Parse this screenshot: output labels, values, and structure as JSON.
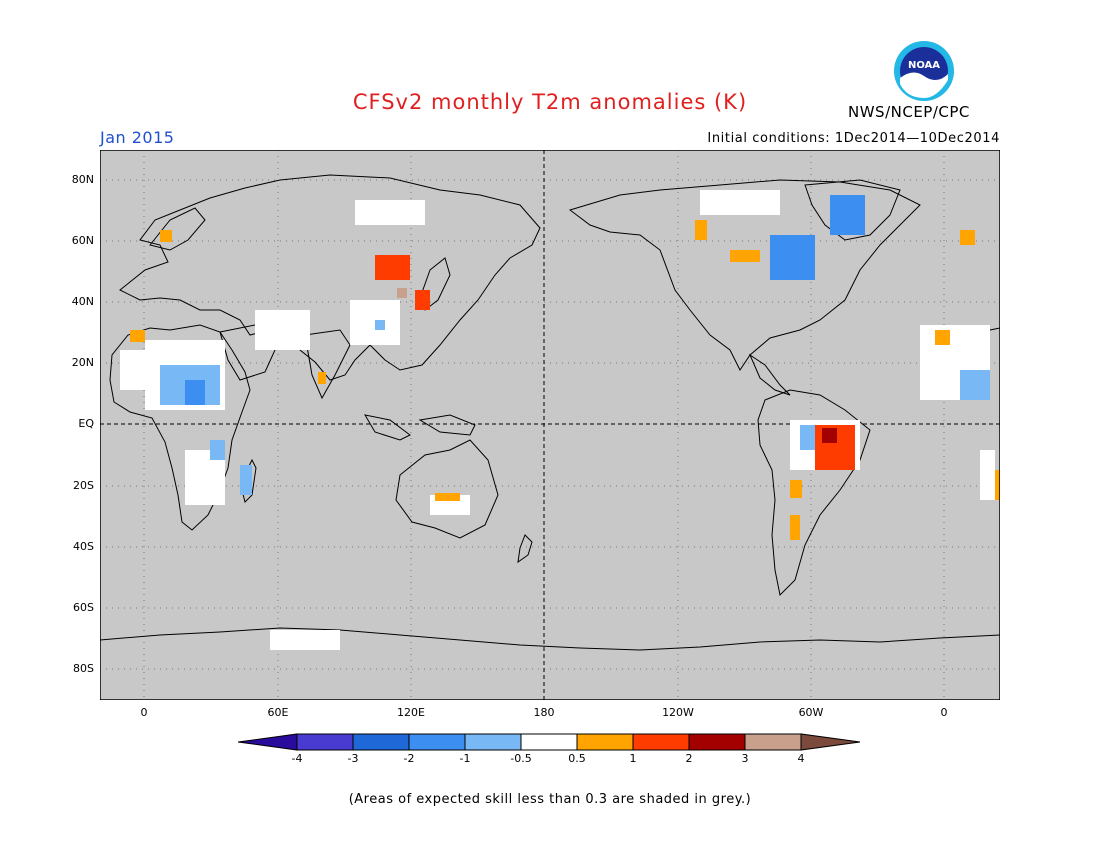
{
  "header": {
    "title": "CFSv2 monthly T2m anomalies (K)",
    "month": "Jan 2015",
    "initial_conditions": "Initial conditions: 1Dec2014—10Dec2014",
    "org": "NWS/NCEP/CPC",
    "logo_text": "NOAA"
  },
  "map": {
    "land_color": "#c8c8c8",
    "ocean_color": "#c8c8c8",
    "lat_labels": [
      "80N",
      "60N",
      "40N",
      "20N",
      "EQ",
      "20S",
      "40S",
      "60S",
      "80S"
    ],
    "lon_labels": [
      "0",
      "60E",
      "120E",
      "180",
      "120W",
      "60W",
      "0"
    ]
  },
  "colorbar": {
    "labels": [
      "-4",
      "-3",
      "-2",
      "-1",
      "-0.5",
      "0.5",
      "1",
      "2",
      "3",
      "4"
    ],
    "colors": [
      "#2a0c9c",
      "#4a3bd0",
      "#1f68d8",
      "#3c8ff0",
      "#78b9f5",
      "#ffffff",
      "#ffa400",
      "#ff3c00",
      "#a30000",
      "#c8a08c",
      "#7b4a3c"
    ]
  },
  "footnote": "(Areas of expected skill less than 0.3 are shaded in grey.)"
}
